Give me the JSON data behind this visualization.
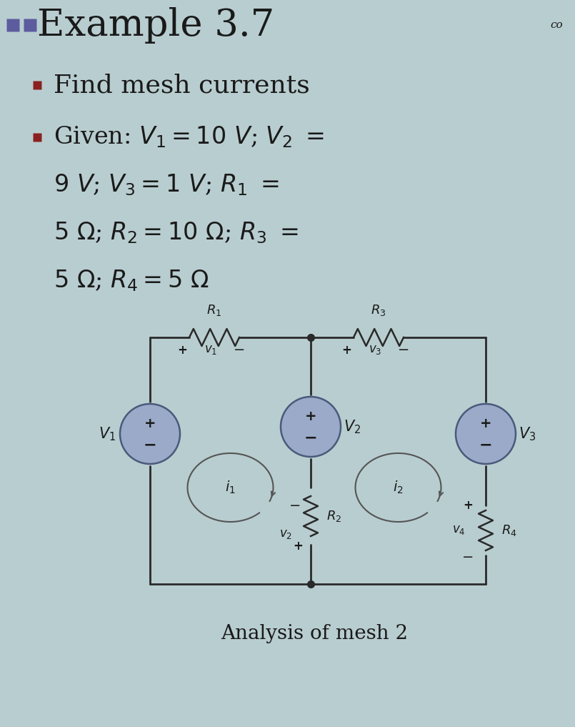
{
  "bg_color": "#b8cdd0",
  "title": "Example 3.7",
  "title_fontsize": 38,
  "bullet_color": "#5c5c9e",
  "text_color": "#1a1a1a",
  "line1": "Find mesh currents",
  "line2_parts": [
    "Given: ",
    "V",
    "1",
    " = 10 V",
    "; ",
    "V",
    "2",
    " ="
  ],
  "line3_parts": [
    "9 V",
    "; ",
    "V",
    "3",
    " = 1 V",
    "; ",
    "R",
    "1",
    " ="
  ],
  "line4_parts": [
    "5 Ω",
    "; ",
    "R",
    "2",
    " = 10 Ω",
    "; ",
    "R",
    "3",
    " ="
  ],
  "line5_parts": [
    "5 Ω",
    "; ",
    "R",
    "4",
    " = 5 Ω"
  ],
  "caption": "Analysis of mesh 2",
  "circuit_line_color": "#2a2a2a",
  "resistor_color": "#2a2a2a",
  "source_color": "#8898b8",
  "mesh_arrow_color": "#555555"
}
